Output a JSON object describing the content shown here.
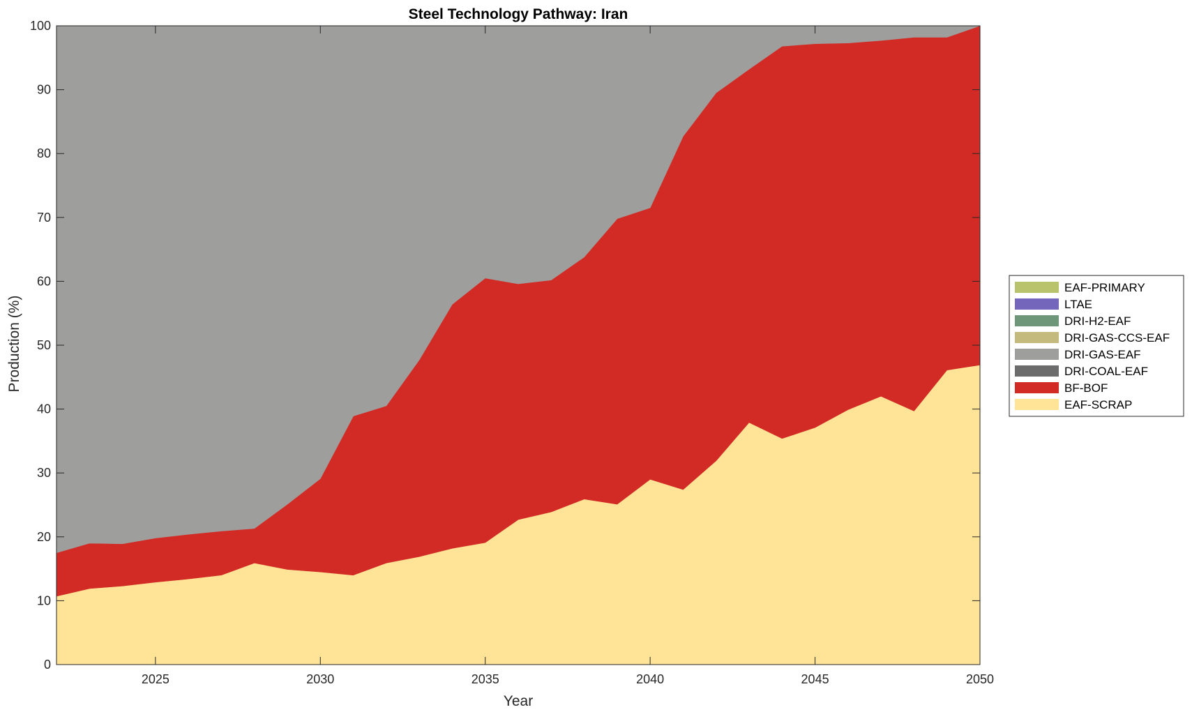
{
  "chart_data": {
    "type": "area",
    "stacked": true,
    "title": "Steel Technology Pathway: Iran",
    "xlabel": "Year",
    "ylabel": "Production (%)",
    "xlim": [
      2022,
      2050
    ],
    "ylim": [
      0,
      100
    ],
    "xticks": [
      2025,
      2030,
      2035,
      2040,
      2045,
      2050
    ],
    "yticks": [
      0,
      10,
      20,
      30,
      40,
      50,
      60,
      70,
      80,
      90,
      100
    ],
    "grid": false,
    "legend_position": "right",
    "x": [
      2022,
      2023,
      2024,
      2025,
      2026,
      2027,
      2028,
      2029,
      2030,
      2031,
      2032,
      2033,
      2034,
      2035,
      2036,
      2037,
      2038,
      2039,
      2040,
      2041,
      2042,
      2043,
      2044,
      2045,
      2046,
      2047,
      2048,
      2049,
      2050
    ],
    "series": [
      {
        "name": "EAF-SCRAP",
        "color": "#ffe396",
        "values": [
          10.7,
          11.9,
          12.3,
          12.9,
          13.4,
          14.0,
          15.9,
          14.9,
          14.5,
          14.0,
          15.9,
          16.9,
          18.2,
          19.1,
          22.7,
          23.9,
          25.9,
          25.1,
          29.0,
          27.4,
          31.9,
          37.9,
          35.4,
          37.1,
          39.9,
          42.0,
          39.7,
          46.1,
          46.9
        ]
      },
      {
        "name": "BF-BOF",
        "color": "#d22a24",
        "values": [
          6.8,
          7.1,
          6.6,
          6.9,
          7.0,
          6.9,
          5.4,
          10.2,
          14.6,
          24.9,
          24.6,
          30.8,
          38.2,
          41.4,
          36.9,
          36.3,
          37.9,
          44.7,
          42.5,
          55.3,
          57.6,
          55.3,
          61.4,
          60.1,
          57.4,
          55.7,
          58.5,
          52.1,
          53.1
        ]
      },
      {
        "name": "DRI-COAL-EAF",
        "color": "#6c6c6c",
        "values": [
          0,
          0,
          0,
          0,
          0,
          0,
          0,
          0,
          0,
          0,
          0,
          0,
          0,
          0,
          0,
          0,
          0,
          0,
          0,
          0,
          0,
          0,
          0,
          0,
          0,
          0,
          0,
          0,
          0
        ]
      },
      {
        "name": "DRI-GAS-EAF",
        "color": "#9e9e9c",
        "values": [
          82.5,
          81.0,
          81.1,
          80.2,
          79.6,
          79.1,
          78.7,
          74.9,
          70.9,
          61.1,
          59.5,
          52.3,
          43.6,
          39.5,
          40.4,
          39.8,
          36.2,
          30.2,
          28.5,
          17.3,
          10.5,
          6.8,
          3.2,
          2.8,
          2.7,
          2.3,
          1.8,
          1.8,
          0
        ]
      },
      {
        "name": "DRI-GAS-CCS-EAF",
        "color": "#c4ba7e",
        "values": [
          0,
          0,
          0,
          0,
          0,
          0,
          0,
          0,
          0,
          0,
          0,
          0,
          0,
          0,
          0,
          0,
          0,
          0,
          0,
          0,
          0,
          0,
          0,
          0,
          0,
          0,
          0,
          0,
          0
        ]
      },
      {
        "name": "DRI-H2-EAF",
        "color": "#6e9678",
        "values": [
          0,
          0,
          0,
          0,
          0,
          0,
          0,
          0,
          0,
          0,
          0,
          0,
          0,
          0,
          0,
          0,
          0,
          0,
          0,
          0,
          0,
          0,
          0,
          0,
          0,
          0,
          0,
          0,
          0
        ]
      },
      {
        "name": "LTAE",
        "color": "#7466ba",
        "values": [
          0,
          0,
          0,
          0,
          0,
          0,
          0,
          0,
          0,
          0,
          0,
          0,
          0,
          0,
          0,
          0,
          0,
          0,
          0,
          0,
          0,
          0,
          0,
          0,
          0,
          0,
          0,
          0,
          0
        ]
      },
      {
        "name": "EAF-PRIMARY",
        "color": "#b9c36c",
        "values": [
          0,
          0,
          0,
          0,
          0,
          0,
          0,
          0,
          0,
          0,
          0,
          0,
          0,
          0,
          0,
          0,
          0,
          0,
          0,
          0,
          0,
          0,
          0,
          0,
          0,
          0,
          0,
          0,
          0
        ]
      }
    ],
    "legend_order": [
      "EAF-PRIMARY",
      "LTAE",
      "DRI-H2-EAF",
      "DRI-GAS-CCS-EAF",
      "DRI-GAS-EAF",
      "DRI-COAL-EAF",
      "BF-BOF",
      "EAF-SCRAP"
    ]
  }
}
